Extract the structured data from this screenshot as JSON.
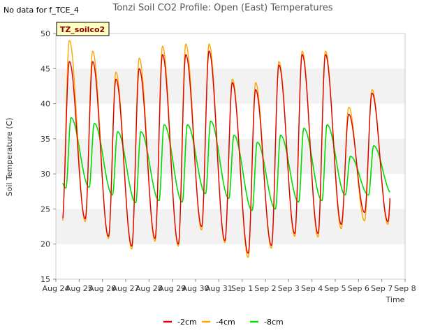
{
  "nodata_note": "No data for f_TCE_4",
  "chart_data": {
    "type": "line",
    "title": "Tonzi Soil CO2 Profile: Open (East) Temperatures",
    "xlabel": "Time",
    "ylabel": "Soil Temperature (C)",
    "ylim": [
      15,
      50
    ],
    "yticks": [
      15,
      20,
      25,
      30,
      35,
      40,
      45,
      50
    ],
    "xlim": [
      0,
      15
    ],
    "xtick_labels": [
      "Aug 24",
      "Aug 25",
      "Aug 26",
      "Aug 27",
      "Aug 28",
      "Aug 29",
      "Aug 30",
      "Aug 31",
      "Sep 1",
      "Sep 2",
      "Sep 3",
      "Sep 4",
      "Sep 5",
      "Sep 6",
      "Sep 7",
      "Sep 8"
    ],
    "grid_bands": true,
    "annotation_box": "TZ_soilco2",
    "legend_position": "bottom-center",
    "data_start": 0.3,
    "data_end": 14.35,
    "series": [
      {
        "name": "-2cm",
        "color": "#dd0000",
        "width": 1.4,
        "mins": [
          22.8,
          23.6,
          21.1,
          19.7,
          20.8,
          20.0,
          22.5,
          20.5,
          18.7,
          19.8,
          21.5,
          21.5,
          22.8,
          24.5,
          23.2,
          23.2
        ],
        "maxs": [
          46.0,
          46.0,
          43.5,
          45.0,
          47.0,
          47.0,
          47.5,
          43.0,
          42.0,
          45.5,
          47.0,
          47.0,
          38.5,
          41.5
        ],
        "peak_phase": 0.58,
        "trough_phase": 0.26
      },
      {
        "name": "-4cm",
        "color": "#ffa500",
        "width": 1.4,
        "mins": [
          22.3,
          23.2,
          20.8,
          19.3,
          20.4,
          19.7,
          22.0,
          20.2,
          18.1,
          19.4,
          21.1,
          21.0,
          22.2,
          23.3,
          22.8,
          22.8
        ],
        "maxs": [
          49.0,
          47.5,
          44.5,
          46.5,
          48.2,
          48.5,
          48.5,
          43.5,
          43.0,
          46.0,
          47.5,
          47.5,
          39.5,
          42.0
        ],
        "peak_phase": 0.58,
        "trough_phase": 0.26
      },
      {
        "name": "-8cm",
        "color": "#00dd00",
        "width": 1.6,
        "mins": [
          28.0,
          28.1,
          27.0,
          25.9,
          26.2,
          26.0,
          27.2,
          26.5,
          24.8,
          25.0,
          26.0,
          26.2,
          27.0,
          27.0,
          27.2,
          27.2
        ],
        "maxs": [
          38.0,
          37.2,
          36.0,
          36.0,
          37.0,
          37.0,
          37.5,
          35.5,
          34.5,
          35.5,
          36.5,
          37.0,
          32.5,
          34.0
        ],
        "peak_phase": 0.65,
        "trough_phase": 0.43
      }
    ]
  }
}
